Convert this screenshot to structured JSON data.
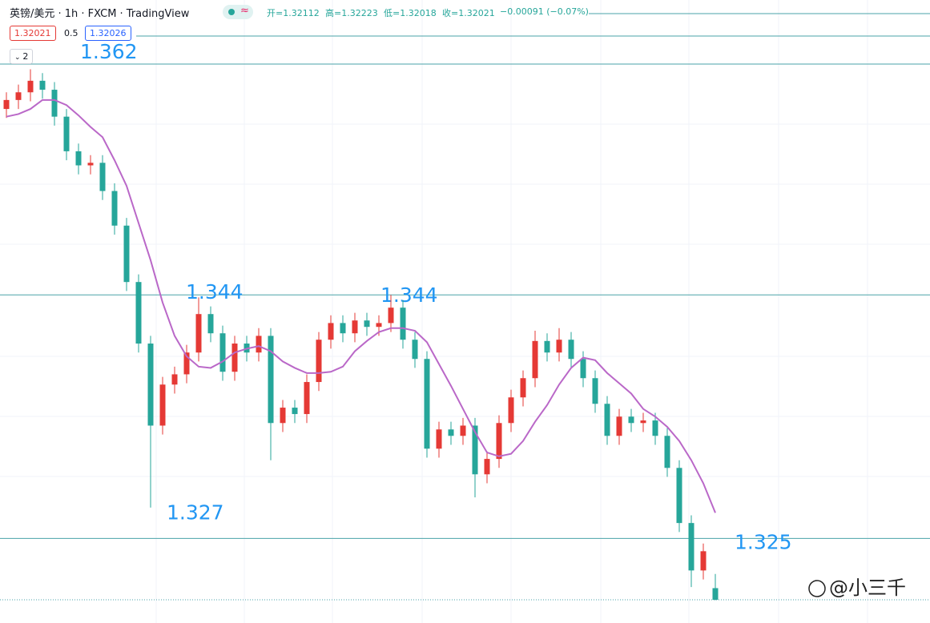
{
  "header": {
    "symbol": "英镑/美元 · 1h · FXCM · TradingView",
    "ohlc": [
      "开=1.32112",
      "高=1.32223",
      "低=1.32018",
      "收=1.32021",
      "−0.00091 (−0.07%)"
    ],
    "sell": "1.32021",
    "spread": "0.5",
    "buy": "1.32026",
    "indicators": "2"
  },
  "watermark": "@小三千",
  "chart_data": {
    "type": "candlestick",
    "ylim": [
      1.3184,
      1.367
    ],
    "up_color": "#e53935",
    "down_color": "#26a69a",
    "open": [
      1.3585,
      1.3592,
      1.3598,
      1.3607,
      1.36,
      1.3579,
      1.3552,
      1.3541,
      1.3543,
      1.3521,
      1.3494,
      1.345,
      1.3402,
      1.3338,
      1.337,
      1.3378,
      1.3395,
      1.3425,
      1.341,
      1.338,
      1.3402,
      1.3395,
      1.3408,
      1.334,
      1.3352,
      1.3347,
      1.3372,
      1.3405,
      1.3418,
      1.341,
      1.342,
      1.3415,
      1.3418,
      1.343,
      1.3405,
      1.339,
      1.332,
      1.3335,
      1.333,
      1.3338,
      1.33,
      1.3312,
      1.334,
      1.336,
      1.3375,
      1.3404,
      1.3395,
      1.3405,
      1.339,
      1.3375,
      1.3355,
      1.333,
      1.3345,
      1.334,
      1.3342,
      1.333,
      1.3305,
      1.3262,
      1.3225,
      1.32112
    ],
    "high": [
      1.3598,
      1.3604,
      1.3616,
      1.3613,
      1.3606,
      1.3585,
      1.3558,
      1.3549,
      1.3549,
      1.3527,
      1.35,
      1.3456,
      1.3408,
      1.3376,
      1.3384,
      1.3401,
      1.3438,
      1.3431,
      1.3416,
      1.3408,
      1.3408,
      1.3414,
      1.3414,
      1.3358,
      1.3358,
      1.3378,
      1.3411,
      1.3424,
      1.3424,
      1.3426,
      1.3426,
      1.3424,
      1.344,
      1.3436,
      1.3411,
      1.3396,
      1.3341,
      1.3341,
      1.3344,
      1.3344,
      1.3318,
      1.3346,
      1.3366,
      1.3381,
      1.3412,
      1.341,
      1.3414,
      1.3411,
      1.3396,
      1.3381,
      1.3361,
      1.3351,
      1.3351,
      1.3348,
      1.3348,
      1.3336,
      1.3311,
      1.3268,
      1.3246,
      1.32223
    ],
    "low": [
      1.3578,
      1.3585,
      1.3591,
      1.3593,
      1.3572,
      1.3545,
      1.3534,
      1.3534,
      1.3514,
      1.3487,
      1.3443,
      1.3395,
      1.3274,
      1.3331,
      1.3363,
      1.3371,
      1.3388,
      1.3403,
      1.3373,
      1.3373,
      1.3388,
      1.3388,
      1.3311,
      1.3333,
      1.334,
      1.334,
      1.3365,
      1.3398,
      1.3403,
      1.3403,
      1.3408,
      1.3408,
      1.3411,
      1.3398,
      1.3383,
      1.3313,
      1.3313,
      1.3323,
      1.3323,
      1.3282,
      1.3293,
      1.3305,
      1.3333,
      1.3353,
      1.3368,
      1.3388,
      1.3388,
      1.3383,
      1.3368,
      1.3348,
      1.3323,
      1.3323,
      1.3333,
      1.3333,
      1.3323,
      1.3298,
      1.3255,
      1.3212,
      1.3218,
      1.32018
    ],
    "close": [
      1.3592,
      1.3598,
      1.3607,
      1.36,
      1.3579,
      1.3552,
      1.3541,
      1.3543,
      1.3521,
      1.3494,
      1.345,
      1.3402,
      1.3338,
      1.337,
      1.3378,
      1.3395,
      1.3425,
      1.341,
      1.338,
      1.3402,
      1.3395,
      1.3408,
      1.334,
      1.3352,
      1.3347,
      1.3372,
      1.3405,
      1.3418,
      1.341,
      1.342,
      1.3415,
      1.3418,
      1.343,
      1.3405,
      1.339,
      1.332,
      1.3335,
      1.333,
      1.3338,
      1.33,
      1.3312,
      1.334,
      1.336,
      1.3375,
      1.3404,
      1.3395,
      1.3405,
      1.339,
      1.3375,
      1.3355,
      1.333,
      1.3345,
      1.334,
      1.3342,
      1.333,
      1.3305,
      1.3262,
      1.3225,
      1.324,
      1.32021
    ],
    "ma": {
      "color": "#ba68c8",
      "values": [
        1.3579,
        1.3581,
        1.3585,
        1.3592,
        1.3592,
        1.3588,
        1.358,
        1.3571,
        1.3563,
        1.3545,
        1.3525,
        1.3496,
        1.3467,
        1.3434,
        1.3408,
        1.3392,
        1.3384,
        1.3383,
        1.3388,
        1.3395,
        1.3398,
        1.34,
        1.3396,
        1.3388,
        1.3383,
        1.3379,
        1.3379,
        1.338,
        1.3384,
        1.3396,
        1.3404,
        1.3411,
        1.3414,
        1.3414,
        1.3412,
        1.3403,
        1.3386,
        1.3369,
        1.3351,
        1.3333,
        1.3317,
        1.3314,
        1.3316,
        1.3326,
        1.3341,
        1.3354,
        1.337,
        1.3383,
        1.3391,
        1.3389,
        1.3379,
        1.3371,
        1.3363,
        1.3351,
        1.3345,
        1.3337,
        1.3326,
        1.3311,
        1.3293,
        1.327
      ]
    },
    "annotations": [
      {
        "value": 1.362,
        "label": "1.362",
        "line": true
      },
      {
        "value": 1.344,
        "label": "1.344",
        "line": true
      },
      {
        "value": 1.344,
        "label": "1.344",
        "line": false
      },
      {
        "value": 1.327,
        "label": "1.327",
        "line": false
      },
      {
        "value": 1.325,
        "label": "1.325",
        "line": true
      }
    ],
    "line_color": "#4aa3a8",
    "label_color": "#2196f3"
  }
}
